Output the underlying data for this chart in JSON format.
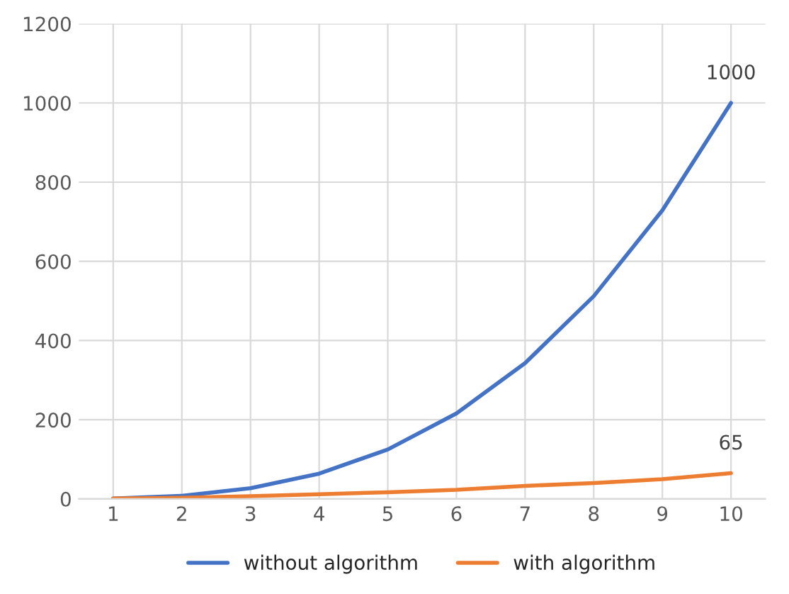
{
  "chart_data": {
    "type": "line",
    "categories": [
      "1",
      "2",
      "3",
      "4",
      "5",
      "6",
      "7",
      "8",
      "9",
      "10"
    ],
    "series": [
      {
        "name": "without algorithm",
        "color": "#4472c4",
        "values": [
          1,
          8,
          27,
          64,
          125,
          216,
          343,
          512,
          729,
          1000
        ],
        "value_labels": [
          null,
          null,
          null,
          null,
          null,
          null,
          null,
          null,
          null,
          "1000"
        ]
      },
      {
        "name": "with algorithm",
        "color": "#ed7d31",
        "values": [
          1,
          3,
          7,
          12,
          17,
          23,
          33,
          40,
          50,
          65
        ],
        "value_labels": [
          null,
          null,
          null,
          null,
          null,
          null,
          null,
          null,
          null,
          "65"
        ]
      }
    ],
    "ylim": [
      0,
      1200
    ],
    "yticks": [
      0,
      200,
      400,
      600,
      800,
      1000,
      1200
    ],
    "grid": true,
    "legend": "bottom",
    "marker": "none",
    "line_style": "solid"
  }
}
